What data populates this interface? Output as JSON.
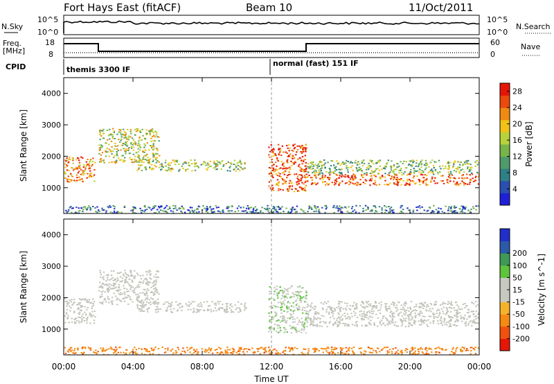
{
  "header": {
    "station": "Fort Hays East (fitACF)",
    "beam": "Beam 10",
    "date": "11/Oct/2011"
  },
  "strip_labels": {
    "nsky": "N.Sky",
    "nsky_top": "10^5",
    "nsky_bottom": "10^0",
    "nsearch": "N.Search",
    "nsearch_top": "10^5",
    "nsearch_bottom": "10^0",
    "freq_line1": "Freq.",
    "freq_line2": "[MHz]",
    "freq_top": "18",
    "freq_bottom": "8",
    "nave": "Nave",
    "nave_top": "60",
    "nave_bottom": "0",
    "cpid": "CPID",
    "cpid_1": "themis 3300 IF",
    "cpid_2": "normal (fast) 151 IF"
  },
  "colors": {
    "power": [
      "#1f1fd8",
      "#2a4fb0",
      "#2f7f86",
      "#4f9a6a",
      "#77b54a",
      "#b8d23a",
      "#f2c316",
      "#f08a10",
      "#ec4a0c",
      "#e61606"
    ],
    "velocity": [
      "#e61606",
      "#f0520e",
      "#f68a12",
      "#f6b22a",
      "#c8c8c0",
      "#c8c8c0",
      "#5ec43c",
      "#3e9a56",
      "#2c5aa8",
      "#1f2fc8"
    ],
    "grey": "#c4c4bc"
  },
  "chart_data": [
    {
      "type": "heatmap",
      "name": "power",
      "xlabel": "Time UT",
      "ylabel": "Slant Range [km]",
      "xlim": [
        0,
        24
      ],
      "ylim": [
        180,
        4500
      ],
      "x_ticks": [
        "00:00",
        "04:00",
        "08:00",
        "12:00",
        "16:00",
        "20:00",
        "00:00"
      ],
      "x_tick_values": [
        0,
        4,
        8,
        12,
        16,
        20,
        24
      ],
      "y_ticks": [
        "1000",
        "2000",
        "3000",
        "4000"
      ],
      "y_tick_values": [
        1000,
        2000,
        3000,
        4000
      ],
      "colorbar": {
        "label": "Power [dB]",
        "range": [
          0,
          30
        ],
        "tick_labels": [
          "4",
          "8",
          "12",
          "16",
          "20",
          "24",
          "28"
        ],
        "tick_values": [
          4,
          8,
          12,
          16,
          20,
          24,
          28
        ]
      },
      "regions": [
        {
          "t0": 0.0,
          "t1": 1.8,
          "r0": 1200,
          "r1": 2000,
          "level": 0.75
        },
        {
          "t0": 2.0,
          "t1": 5.5,
          "r0": 1800,
          "r1": 2900,
          "level": 0.55
        },
        {
          "t0": 4.2,
          "t1": 10.5,
          "r0": 1550,
          "r1": 1900,
          "level": 0.5
        },
        {
          "t0": 11.8,
          "t1": 14.0,
          "r0": 900,
          "r1": 2400,
          "level": 0.85
        },
        {
          "t0": 14.0,
          "t1": 24.0,
          "r0": 1100,
          "r1": 1450,
          "level": 0.85
        },
        {
          "t0": 14.0,
          "t1": 24.0,
          "r0": 1450,
          "r1": 1900,
          "level": 0.45
        },
        {
          "t0": 0.0,
          "t1": 24.0,
          "r0": 200,
          "r1": 450,
          "level": 0.25
        }
      ]
    },
    {
      "type": "heatmap",
      "name": "velocity",
      "xlabel": "Time UT",
      "ylabel": "Slant Range [km]",
      "xlim": [
        0,
        24
      ],
      "ylim": [
        180,
        4500
      ],
      "x_ticks": [
        "00:00",
        "04:00",
        "08:00",
        "12:00",
        "16:00",
        "20:00",
        "00:00"
      ],
      "x_tick_values": [
        0,
        4,
        8,
        12,
        16,
        20,
        24
      ],
      "y_ticks": [
        "1000",
        "2000",
        "3000",
        "4000"
      ],
      "y_tick_values": [
        1000,
        2000,
        3000,
        4000
      ],
      "colorbar": {
        "label": "Velocity [m s^-1]",
        "tick_labels": [
          "-200",
          "-100",
          "-50",
          "-15",
          "15",
          "50",
          "100",
          "200"
        ],
        "tick_values": [
          -200,
          -100,
          -50,
          -15,
          15,
          50,
          100,
          200
        ]
      },
      "regions": [
        {
          "t0": 0.0,
          "t1": 1.8,
          "r0": 1200,
          "r1": 2000,
          "v": 0
        },
        {
          "t0": 2.0,
          "t1": 5.5,
          "r0": 1800,
          "r1": 2900,
          "v": 0
        },
        {
          "t0": 4.2,
          "t1": 10.5,
          "r0": 1550,
          "r1": 1900,
          "v": 0
        },
        {
          "t0": 11.8,
          "t1": 14.0,
          "r0": 900,
          "r1": 2400,
          "v": 40
        },
        {
          "t0": 14.0,
          "t1": 24.0,
          "r0": 1100,
          "r1": 1900,
          "v": 0
        },
        {
          "t0": 0.0,
          "t1": 24.0,
          "r0": 200,
          "r1": 450,
          "v": -80
        }
      ]
    }
  ]
}
